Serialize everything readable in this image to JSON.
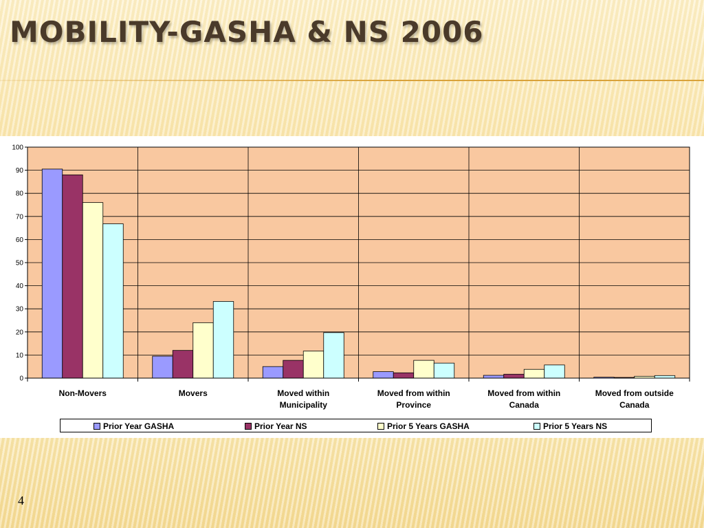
{
  "slide": {
    "title": "MOBILITY-GASHA & NS 2006",
    "page_number": "4"
  },
  "colors": {
    "plot_bg": "#f9c8a0",
    "grid": "#000000",
    "series": [
      "#9a9aff",
      "#993366",
      "#ffffcc",
      "#ccffff"
    ]
  },
  "chart_data": {
    "type": "bar",
    "title": "",
    "xlabel": "",
    "ylabel": "",
    "ylim": [
      0,
      100
    ],
    "yticks": [
      0,
      10,
      20,
      30,
      40,
      50,
      60,
      70,
      80,
      90,
      100
    ],
    "grid": true,
    "legend_position": "bottom",
    "categories": [
      [
        "Non-Movers"
      ],
      [
        "Movers"
      ],
      [
        "Moved within",
        "Municipality"
      ],
      [
        "Moved from within",
        "Province"
      ],
      [
        "Moved from within",
        "Canada"
      ],
      [
        "Moved from outside",
        "Canada"
      ]
    ],
    "series": [
      {
        "name": "Prior Year GASHA",
        "values": [
          90.5,
          9.5,
          5.0,
          2.8,
          1.2,
          0.4
        ]
      },
      {
        "name": "Prior Year NS",
        "values": [
          88.0,
          12.0,
          7.7,
          2.3,
          1.7,
          0.3
        ]
      },
      {
        "name": "Prior 5 Years GASHA",
        "values": [
          76.0,
          24.0,
          11.7,
          7.7,
          3.8,
          0.8
        ]
      },
      {
        "name": "Prior 5 Years NS",
        "values": [
          66.8,
          33.2,
          19.7,
          6.5,
          5.7,
          1.1
        ]
      }
    ]
  }
}
